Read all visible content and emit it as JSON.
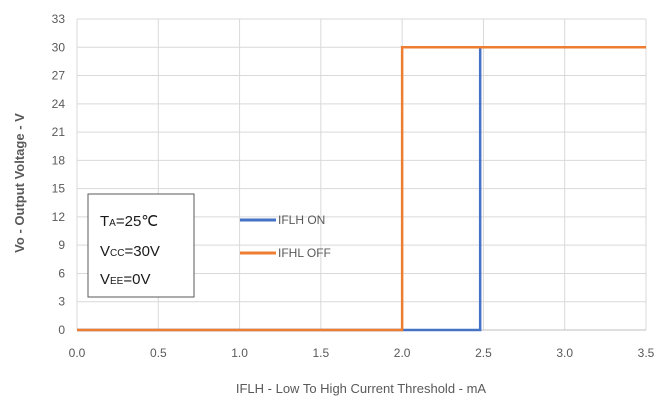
{
  "chart_data": {
    "type": "line",
    "xlabel": "IFLH - Low To High Current Threshold - mA",
    "ylabel": "Vo - Output Voltage - V",
    "xlim": [
      0,
      3.5
    ],
    "ylim": [
      0,
      33
    ],
    "xticks": [
      "0.0",
      "0.5",
      "1.0",
      "1.5",
      "2.0",
      "2.5",
      "3.0",
      "3.5"
    ],
    "yticks": [
      "0",
      "3",
      "6",
      "9",
      "12",
      "15",
      "18",
      "21",
      "24",
      "27",
      "30",
      "33"
    ],
    "grid": true,
    "legend_position": "center",
    "series": [
      {
        "name": "IFLH ON",
        "color": "#4472C4",
        "x": [
          0,
          2.48,
          2.48,
          3.5
        ],
        "y": [
          0,
          0,
          30,
          30
        ]
      },
      {
        "name": "IFHL OFF",
        "color": "#ED7D31",
        "x": [
          0,
          2.0,
          2.0,
          3.5
        ],
        "y": [
          0,
          0,
          30,
          30
        ]
      }
    ],
    "conditions": [
      {
        "main": "T",
        "sub": "A",
        "rest": "=25℃"
      },
      {
        "main": "V",
        "sub": "CC",
        "rest": "=30V"
      },
      {
        "main": "V",
        "sub": "EE",
        "rest": "=0V"
      }
    ]
  }
}
